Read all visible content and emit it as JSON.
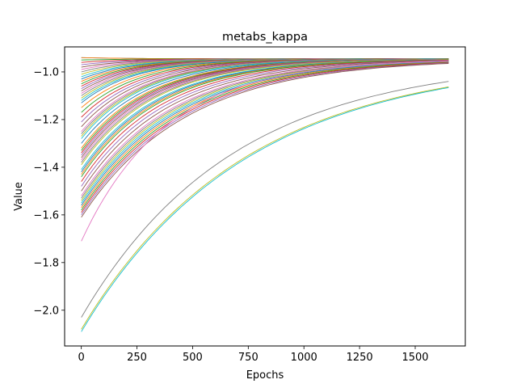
{
  "chart_data": {
    "type": "line",
    "title": "metabs_kappa",
    "xlabel": "Epochs",
    "ylabel": "Value",
    "xlim": [
      -75,
      1725
    ],
    "ylim": [
      -2.15,
      -0.895
    ],
    "xticks": [
      0,
      250,
      500,
      750,
      1000,
      1250,
      1500
    ],
    "xtick_labels": [
      "0",
      "250",
      "500",
      "750",
      "1000",
      "1250",
      "1500"
    ],
    "yticks": [
      -2.0,
      -1.8,
      -1.6,
      -1.4,
      -1.2,
      -1.0
    ],
    "ytick_labels": [
      "−2.0",
      "−1.8",
      "−1.6",
      "−1.4",
      "−1.2",
      "−1.0"
    ],
    "grid": false,
    "legend": "none",
    "x_end": 1650,
    "asymptote": -0.945,
    "palette": [
      "#1f77b4",
      "#ff7f0e",
      "#2ca02c",
      "#d62728",
      "#9467bd",
      "#8c564b",
      "#e377c2",
      "#7f7f7f",
      "#bcbd22",
      "#17becf"
    ],
    "series_start_values": [
      -0.94,
      -0.94,
      -0.95,
      -0.96,
      -0.97,
      -0.98,
      -0.99,
      -1.0,
      -1.01,
      -1.02,
      -1.03,
      -1.04,
      -1.05,
      -1.06,
      -1.07,
      -1.08,
      -1.09,
      -1.1,
      -1.11,
      -1.12,
      -1.13,
      -1.15,
      -1.17,
      -1.19,
      -1.21,
      -1.23,
      -1.25,
      -1.26,
      -1.27,
      -1.28,
      -1.3,
      -1.32,
      -1.33,
      -1.34,
      -1.35,
      -1.36,
      -1.37,
      -1.38,
      -1.39,
      -1.41,
      -1.42,
      -1.43,
      -1.44,
      -1.46,
      -1.48,
      -1.5,
      -1.52,
      -1.53,
      -1.54,
      -1.55,
      -1.56,
      -1.57,
      -1.58,
      -1.59,
      -1.6,
      -1.61,
      -1.71,
      -2.03,
      -2.08,
      -2.09
    ],
    "series_end_values": {
      "-1.71": -0.955,
      "-2.03": -1.04,
      "-2.08": -1.063,
      "-2.09": -1.066
    }
  }
}
